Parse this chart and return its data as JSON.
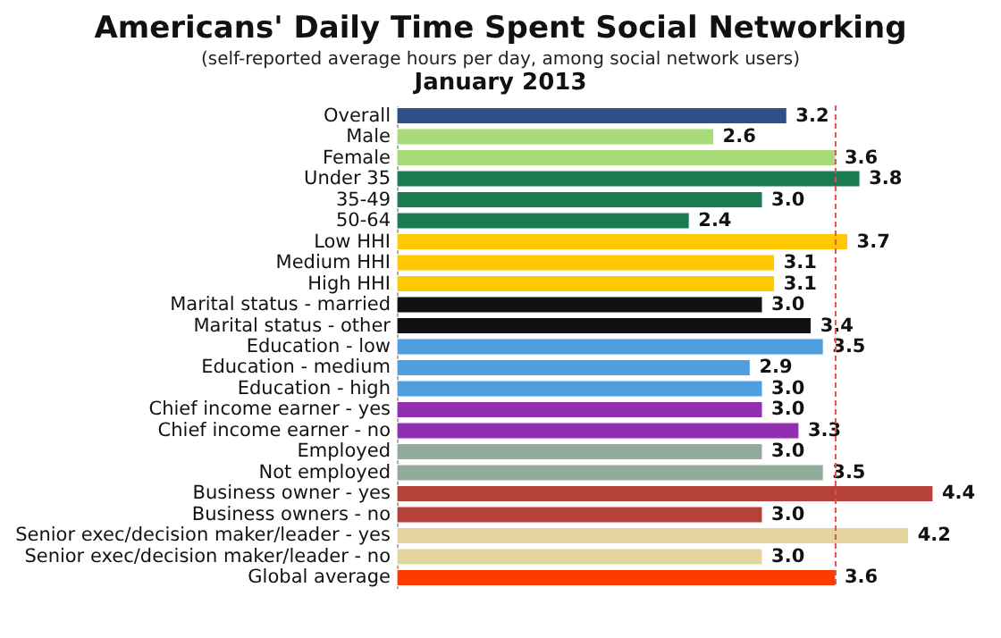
{
  "chart_data": {
    "type": "bar",
    "orientation": "horizontal",
    "title": "Americans' Daily Time Spent Social Networking",
    "subtitle": "(self-reported average hours per day, among social network users)",
    "annotations": [
      "January 2013"
    ],
    "categories": [
      "Overall",
      "Male",
      "Female",
      "Under 35",
      "35-49",
      "50-64",
      "Low HHI",
      "Medium HHI",
      "High HHI",
      "Marital status - married",
      "Marital status - other",
      "Education - low",
      "Education - medium",
      "Education - high",
      "Chief income earner - yes",
      "Chief income earner - no",
      "Employed",
      "Not employed",
      "Business owner - yes",
      "Business owners - no",
      "Senior exec/decision maker/leader - yes",
      "Senior exec/decision maker/leader - no",
      "Global average"
    ],
    "values": [
      3.2,
      2.6,
      3.6,
      3.8,
      3.0,
      2.4,
      3.7,
      3.1,
      3.1,
      3.0,
      3.4,
      3.5,
      2.9,
      3.0,
      3.0,
      3.3,
      3.0,
      3.5,
      4.4,
      3.0,
      4.2,
      3.0,
      3.6
    ],
    "colors": [
      "#2e5088",
      "#a8db7a",
      "#a8db7a",
      "#1a7a50",
      "#1a7a50",
      "#1a7a50",
      "#ffc800",
      "#ffc800",
      "#ffc800",
      "#111111",
      "#111111",
      "#4f9ee0",
      "#4f9ee0",
      "#4f9ee0",
      "#9030b0",
      "#9030b0",
      "#93ab9b",
      "#93ab9b",
      "#b5413a",
      "#b5413a",
      "#e3d4a0",
      "#e3d4a0",
      "#ff3a00"
    ],
    "value_labels": [
      "3.2",
      "2.6",
      "3.6",
      "3.8",
      "3.0",
      "2.4",
      "3.7",
      "3.1",
      "3.1",
      "3.0",
      "3.4",
      "3.5",
      "2.9",
      "3.0",
      "3.0",
      "3.3",
      "3.0",
      "3.5",
      "4.4",
      "3.0",
      "4.2",
      "3.0",
      "3.6"
    ],
    "ref_lines": [
      {
        "axis": "x",
        "value": 3.6,
        "label": null,
        "color": "#e05050",
        "line_style": "dashed"
      }
    ]
  }
}
